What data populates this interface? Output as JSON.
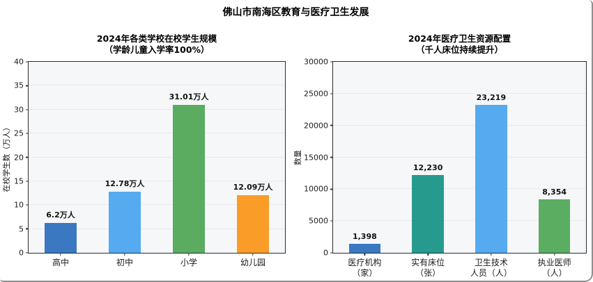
{
  "page_title": "佛山市南海区教育与医疗卫生发展",
  "colors": {
    "background": "#ffffff",
    "plot_background": "#f6f7f9",
    "plot_frame": "#2b2b2b",
    "gridline": "#e7eaee",
    "outer_border": "#8f8f8f",
    "text": "#111111"
  },
  "chart_data": [
    {
      "type": "bar",
      "title": "2024年各类学校在校学生规模",
      "subtitle": "（学龄儿童入学率100%）",
      "ylabel": "在校学生数（万人）",
      "xlabel": "",
      "categories": [
        "高中",
        "初中",
        "小学",
        "幼儿园"
      ],
      "values": [
        6.2,
        12.78,
        31.01,
        12.09
      ],
      "value_labels": [
        "6.2万人",
        "12.78万人",
        "31.01万人",
        "12.09万人"
      ],
      "bar_colors": [
        "#3a78c2",
        "#55aaf0",
        "#5bac61",
        "#f99d28"
      ],
      "ylim": [
        0,
        40
      ],
      "yticks": [
        0,
        5,
        10,
        15,
        20,
        25,
        30,
        35,
        40
      ],
      "grid": true,
      "legend": "none"
    },
    {
      "type": "bar",
      "title": "2024年医疗卫生资源配置",
      "subtitle": "（千人床位持续提升）",
      "ylabel": "数量",
      "xlabel": "",
      "categories": [
        "医疗机构\n（家）",
        "实有床位\n（张）",
        "卫生技术\n人员（人）",
        "执业医师\n（人）"
      ],
      "values": [
        1398,
        12230,
        23219,
        8354
      ],
      "value_labels": [
        "1,398",
        "12,230",
        "23,219",
        "8,354"
      ],
      "bar_colors": [
        "#3a78c2",
        "#279a8e",
        "#55aaf0",
        "#5bad62"
      ],
      "ylim": [
        0,
        30000
      ],
      "yticks": [
        0,
        5000,
        10000,
        15000,
        20000,
        25000,
        30000
      ],
      "grid": true,
      "legend": "none"
    }
  ]
}
